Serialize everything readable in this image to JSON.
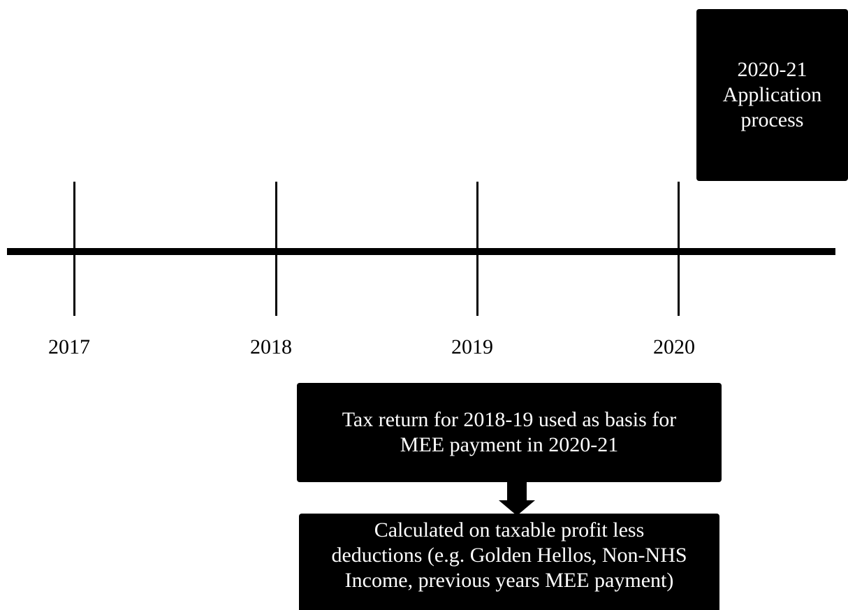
{
  "timeline": {
    "years": [
      "2017",
      "2018",
      "2019",
      "2020"
    ]
  },
  "boxes": {
    "application": "2020-21\nApplication\nprocess",
    "tax_return": "Tax return for 2018-19 used as basis for\nMEE payment in 2020-21",
    "calculation": "Calculated on taxable profit less\ndeductions (e.g. Golden Hellos, Non-NHS\nIncome, previous years MEE payment)"
  },
  "colors": {
    "box_fill": "#000000",
    "box_text": "#ffffff",
    "line": "#000000",
    "background": "#ffffff"
  }
}
